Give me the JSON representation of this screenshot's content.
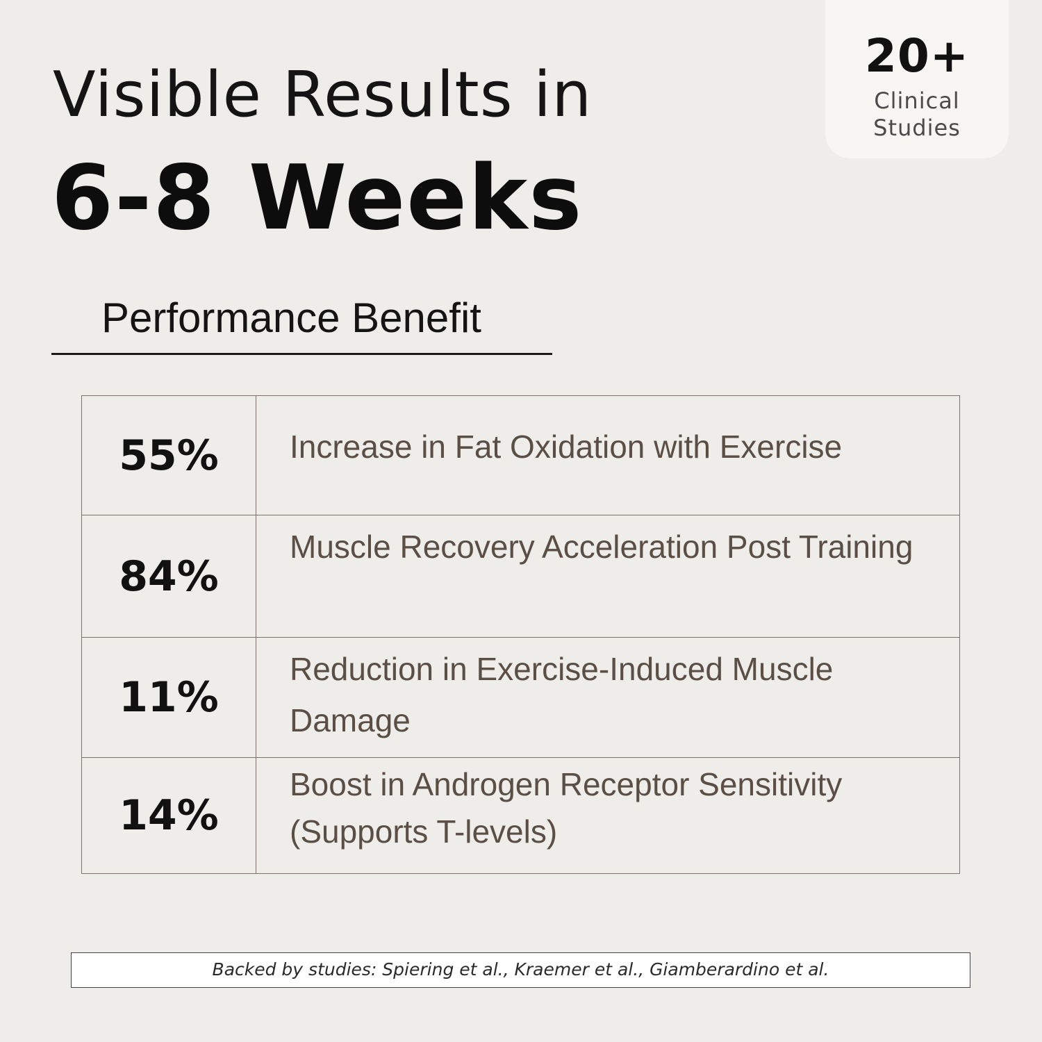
{
  "heading": {
    "line1": "Visible Results in",
    "line2": "6-8 Weeks"
  },
  "badge": {
    "number": "20+",
    "label": "Clinical Studies"
  },
  "section": {
    "title": "Performance Benefit"
  },
  "benefits": [
    {
      "value": "55%",
      "description": "Increase in Fat Oxidation with Exercise"
    },
    {
      "value": "84%",
      "description": "Muscle Recovery Acceleration Post Training"
    },
    {
      "value": "11%",
      "description": "Reduction in Exercise-Induced Muscle Damage"
    },
    {
      "value": "14%",
      "description": "Boost in Androgen Receptor Sensitivity (Supports T-levels)"
    }
  ],
  "footnote": "Backed by studies: Spiering et al., Kraemer et al., Giamberardino et al."
}
